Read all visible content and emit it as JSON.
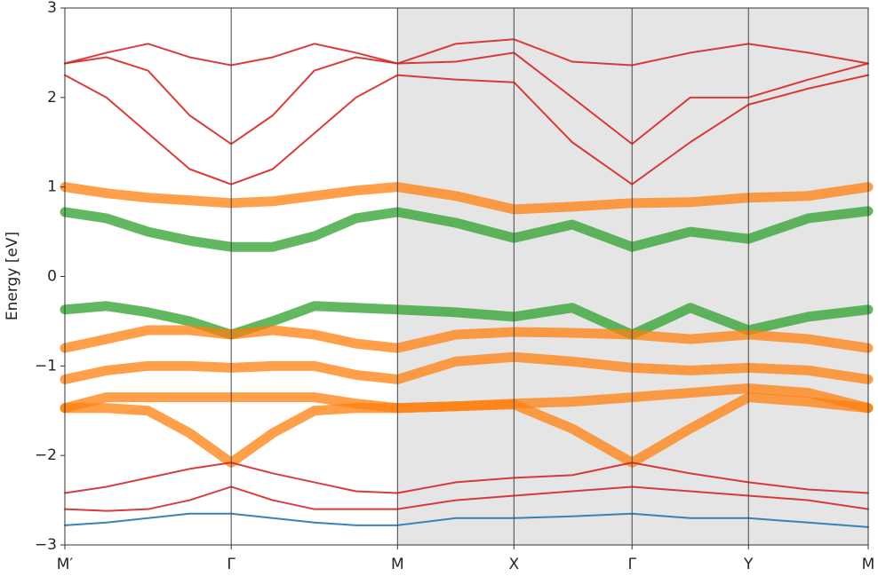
{
  "chart_data": {
    "type": "line",
    "y_label": "Energy [eV]",
    "x": [
      0,
      0.25,
      0.5,
      0.75,
      1,
      1.25,
      1.5,
      1.75,
      2,
      2.35,
      2.7,
      3.05,
      3.41,
      3.76,
      4.11,
      4.47,
      4.83
    ],
    "xlim": [
      0,
      4.83
    ],
    "xticks": [
      {
        "value": 0,
        "label": "M′"
      },
      {
        "value": 1,
        "label": "Γ"
      },
      {
        "value": 2,
        "label": "M"
      },
      {
        "value": 2.7,
        "label": "X"
      },
      {
        "value": 3.41,
        "label": "Γ"
      },
      {
        "value": 4.11,
        "label": "Y"
      },
      {
        "value": 4.83,
        "label": "M"
      }
    ],
    "ylim": [
      -3,
      3
    ],
    "yticks": [
      {
        "value": -3,
        "label": "−3"
      },
      {
        "value": -2,
        "label": "−2"
      },
      {
        "value": -1,
        "label": "−1"
      },
      0,
      1,
      2,
      3
    ],
    "shaded_xrange": [
      2,
      4.83
    ],
    "series": [
      {
        "color": "#d62728",
        "values": [
          2.25,
          2.0,
          1.6,
          1.2,
          1.03,
          1.2,
          1.6,
          2.0,
          2.25,
          2.2,
          2.17,
          1.5,
          1.03,
          1.5,
          1.92,
          2.1,
          2.25
        ]
      },
      {
        "color": "#d62728",
        "values": [
          2.38,
          2.45,
          2.3,
          1.8,
          1.48,
          1.8,
          2.3,
          2.45,
          2.38,
          2.4,
          2.5,
          2.0,
          1.48,
          2.0,
          2.0,
          2.2,
          2.38
        ]
      },
      {
        "color": "#d62728",
        "values": [
          2.38,
          2.5,
          2.6,
          2.45,
          2.36,
          2.45,
          2.6,
          2.5,
          2.38,
          2.6,
          2.65,
          2.4,
          2.36,
          2.5,
          2.6,
          2.5,
          2.38
        ]
      },
      {
        "color": "#ff7f0e",
        "values": [
          1.0,
          0.93,
          0.88,
          0.85,
          0.82,
          0.84,
          0.9,
          0.96,
          1.0,
          0.9,
          0.75,
          0.78,
          0.82,
          0.83,
          0.88,
          0.9,
          1.0
        ]
      },
      {
        "color": "#2ca02c",
        "values": [
          0.72,
          0.65,
          0.5,
          0.4,
          0.33,
          0.33,
          0.45,
          0.65,
          0.72,
          0.6,
          0.43,
          0.58,
          0.33,
          0.5,
          0.42,
          0.65,
          0.73
        ]
      },
      {
        "color": "#2ca02c",
        "values": [
          -0.37,
          -0.33,
          -0.4,
          -0.5,
          -0.65,
          -0.5,
          -0.33,
          -0.35,
          -0.37,
          -0.4,
          -0.45,
          -0.35,
          -0.65,
          -0.35,
          -0.6,
          -0.45,
          -0.37
        ]
      },
      {
        "color": "#ff7f0e",
        "values": [
          -0.8,
          -0.7,
          -0.6,
          -0.6,
          -0.65,
          -0.6,
          -0.65,
          -0.75,
          -0.8,
          -0.65,
          -0.62,
          -0.63,
          -0.65,
          -0.7,
          -0.65,
          -0.7,
          -0.8
        ]
      },
      {
        "color": "#ff7f0e",
        "values": [
          -1.15,
          -1.05,
          -1.0,
          -1.0,
          -1.02,
          -1.0,
          -1.0,
          -1.1,
          -1.15,
          -0.95,
          -0.9,
          -0.95,
          -1.02,
          -1.05,
          -1.02,
          -1.05,
          -1.15
        ]
      },
      {
        "color": "#ff7f0e",
        "values": [
          -1.47,
          -1.35,
          -1.35,
          -1.35,
          -1.35,
          -1.35,
          -1.35,
          -1.42,
          -1.47,
          -1.45,
          -1.42,
          -1.4,
          -1.35,
          -1.3,
          -1.25,
          -1.3,
          -1.47
        ]
      },
      {
        "color": "#ff7f0e",
        "values": [
          -1.47,
          -1.47,
          -1.5,
          -1.75,
          -2.08,
          -1.75,
          -1.5,
          -1.47,
          -1.47,
          -1.45,
          -1.43,
          -1.7,
          -2.08,
          -1.7,
          -1.35,
          -1.4,
          -1.47
        ]
      },
      {
        "color": "#d62728",
        "values": [
          -2.42,
          -2.35,
          -2.25,
          -2.15,
          -2.08,
          -2.2,
          -2.3,
          -2.4,
          -2.42,
          -2.3,
          -2.25,
          -2.22,
          -2.08,
          -2.2,
          -2.3,
          -2.38,
          -2.42
        ]
      },
      {
        "color": "#d62728",
        "values": [
          -2.6,
          -2.62,
          -2.6,
          -2.5,
          -2.35,
          -2.5,
          -2.6,
          -2.6,
          -2.6,
          -2.5,
          -2.45,
          -2.4,
          -2.35,
          -2.4,
          -2.45,
          -2.5,
          -2.6
        ]
      },
      {
        "color": "#1f77b4",
        "values": [
          -2.78,
          -2.75,
          -2.7,
          -2.65,
          -2.65,
          -2.7,
          -2.75,
          -2.78,
          -2.78,
          -2.7,
          -2.7,
          -2.68,
          -2.65,
          -2.7,
          -2.7,
          -2.75,
          -2.8
        ]
      }
    ]
  }
}
